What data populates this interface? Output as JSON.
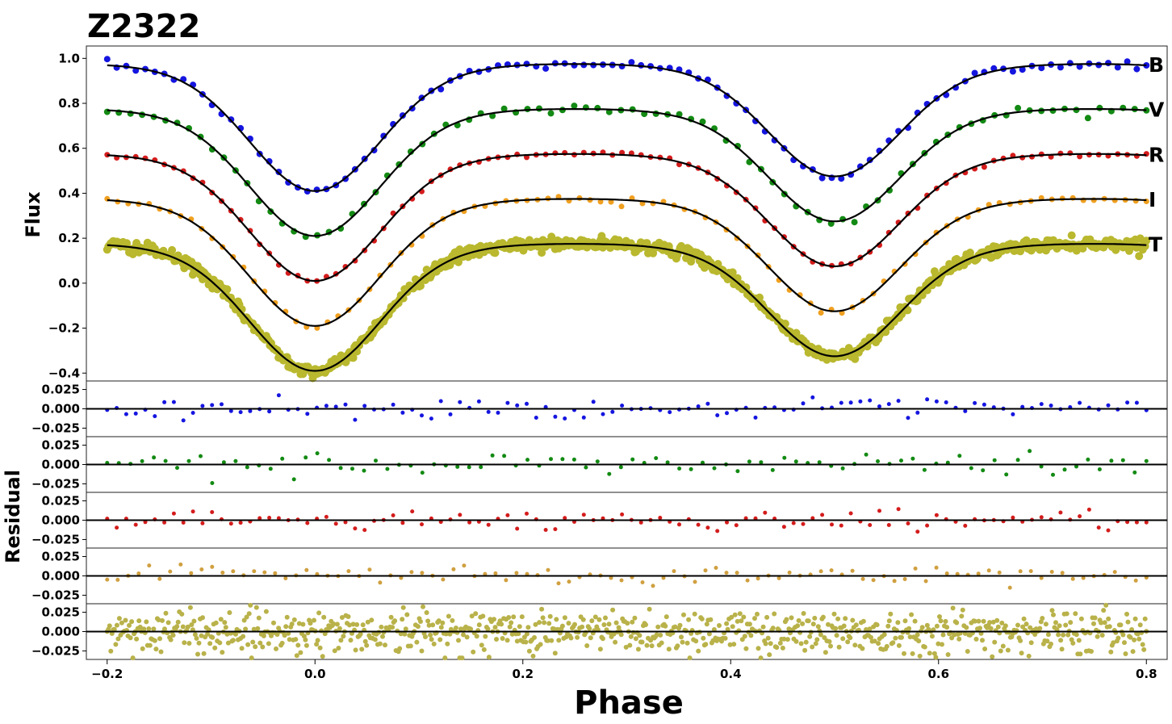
{
  "chart_data": {
    "type": "scatter",
    "title": "Z2322",
    "xlabel": "Phase",
    "xlim": [
      -0.22,
      0.82
    ],
    "x_ticks": [
      "−0.2",
      "0.0",
      "0.2",
      "0.4",
      "0.6",
      "0.8"
    ],
    "x_tick_values": [
      -0.2,
      0.0,
      0.2,
      0.4,
      0.6,
      0.8
    ],
    "top_panel": {
      "ylabel": "Flux",
      "ylim": [
        -0.435,
        1.055
      ],
      "y_ticks": [
        "−0.4",
        "−0.2",
        "0.0",
        "0.2",
        "0.4",
        "0.6",
        "0.8",
        "1.0"
      ],
      "y_tick_values": [
        -0.4,
        -0.2,
        0.0,
        0.2,
        0.4,
        0.6,
        0.8,
        1.0
      ],
      "model_color": "#000000",
      "series": [
        {
          "name": "B",
          "color": "#1515e0",
          "offset": 0.8,
          "max_flux": 0.175,
          "primary_depth": 0.535,
          "secondary_depth": 0.47,
          "n_points": 110,
          "point_radius": 4,
          "scatter": 0.01
        },
        {
          "name": "V",
          "color": "#138a13",
          "offset": 0.6,
          "max_flux": 0.175,
          "primary_depth": 0.535,
          "secondary_depth": 0.47,
          "n_points": 90,
          "point_radius": 4,
          "scatter": 0.01
        },
        {
          "name": "R",
          "color": "#d41c1c",
          "offset": 0.4,
          "max_flux": 0.175,
          "primary_depth": 0.535,
          "secondary_depth": 0.47,
          "n_points": 110,
          "point_radius": 3.5,
          "scatter": 0.007
        },
        {
          "name": "I",
          "color": "#f0a020",
          "offset": 0.2,
          "max_flux": 0.175,
          "primary_depth": 0.535,
          "secondary_depth": 0.47,
          "n_points": 100,
          "point_radius": 3.5,
          "scatter": 0.007
        },
        {
          "name": "T",
          "color": "#b9b82e",
          "offset": 0.0,
          "max_flux": 0.175,
          "primary_depth": 0.535,
          "secondary_depth": 0.47,
          "n_points": 850,
          "point_radius": 5,
          "scatter": 0.013
        }
      ]
    },
    "residual_panels": {
      "ylabel": "Residual",
      "y_ticks": [
        "0.025",
        "0.000",
        "−0.025"
      ],
      "y_tick_values": [
        0.025,
        0.0,
        -0.025
      ],
      "ylim": [
        -0.036,
        0.036
      ],
      "bands": [
        {
          "name": "B",
          "color": "#1515e0",
          "n_points": 110,
          "scatter": 0.006
        },
        {
          "name": "V",
          "color": "#138a13",
          "n_points": 90,
          "scatter": 0.008
        },
        {
          "name": "R",
          "color": "#d41c1c",
          "n_points": 110,
          "scatter": 0.006
        },
        {
          "name": "I",
          "color": "#d0a040",
          "n_points": 100,
          "scatter": 0.006
        },
        {
          "name": "T",
          "color": "#b9b24a",
          "n_points": 850,
          "scatter": 0.014
        }
      ]
    }
  }
}
